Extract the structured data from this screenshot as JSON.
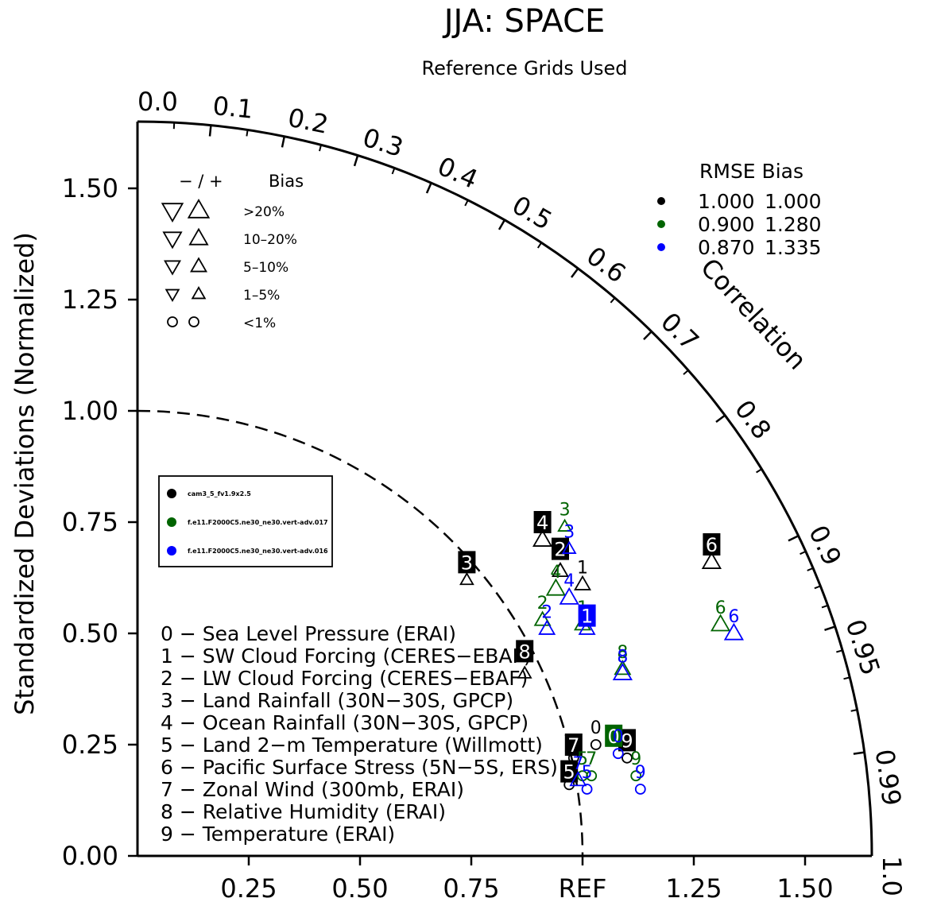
{
  "chart_data": {
    "type": "scatter",
    "subtype": "taylor-diagram",
    "title": "JJA: SPACE",
    "subtitle": "Reference Grids Used",
    "ylabel": "Standardized Deviations (Normalized)",
    "arc_label": "Correlation",
    "ref_label": "REF",
    "radius_max": 1.65,
    "x_ticks": [
      "0.25",
      "0.50",
      "0.75",
      "1.25",
      "1.50"
    ],
    "x_tick_values": [
      0.25,
      0.5,
      0.75,
      1.25,
      1.5
    ],
    "y_ticks": [
      "0.00",
      "0.25",
      "0.50",
      "0.75",
      "1.00",
      "1.25",
      "1.50"
    ],
    "y_tick_values": [
      0,
      0.25,
      0.5,
      0.75,
      1.0,
      1.25,
      1.5
    ],
    "corr_ticks": [
      "0.0",
      "0.1",
      "0.2",
      "0.3",
      "0.4",
      "0.5",
      "0.6",
      "0.7",
      "0.8",
      "0.9",
      "0.95",
      "0.99",
      "1.0"
    ],
    "corr_tick_values": [
      0,
      0.1,
      0.2,
      0.3,
      0.4,
      0.5,
      0.6,
      0.7,
      0.8,
      0.9,
      0.95,
      0.99,
      1.0
    ],
    "minor_corr_ticks": [
      0.05,
      0.15,
      0.25,
      0.35,
      0.45,
      0.55,
      0.65,
      0.75,
      0.85,
      0.91,
      0.92,
      0.93,
      0.94,
      0.96,
      0.97,
      0.98
    ],
    "ref_arc_radius": 1.0,
    "bias_legend": {
      "header_sign": "− / +",
      "header": "Bias",
      "rows": [
        {
          "label": ">20%",
          "size": 1.0
        },
        {
          "label": "10–20%",
          "size": 0.8
        },
        {
          "label": "5–10%",
          "size": 0.6
        },
        {
          "label": "1–5%",
          "size": 0.4
        },
        {
          "label": "<1%",
          "size": 0,
          "circle": true
        }
      ]
    },
    "stats_legend": {
      "header": "RMSE  Bias",
      "rows": [
        {
          "color": "#000000",
          "rmse": "1.000",
          "bias": "1.000"
        },
        {
          "color": "#006400",
          "rmse": "0.900",
          "bias": "1.280"
        },
        {
          "color": "#0000ff",
          "rmse": "0.870",
          "bias": "1.335"
        }
      ]
    },
    "cases": [
      {
        "name": "cam3_5_fv1.9x2.5",
        "color": "#000000"
      },
      {
        "name": "f.e11.F2000C5.ne30_ne30.vert-adv.017",
        "color": "#006400"
      },
      {
        "name": "f.e11.F2000C5.ne30_ne30.vert-adv.016",
        "color": "#0000ff"
      }
    ],
    "variables": [
      "0 − Sea Level Pressure (ERAI)",
      "1 − SW Cloud Forcing (CERES−EBAF)",
      "2 − LW Cloud Forcing (CERES−EBAF)",
      "3 − Land Rainfall (30N−30S, GPCP)",
      "4 − Ocean Rainfall (30N−30S, GPCP)",
      "5 − Land 2−m Temperature (Willmott)",
      "6 − Pacific Surface Stress (5N−5S, ERS)",
      "7 − Zonal Wind (300mb, ERAI)",
      "8 − Relative Humidity (ERAI)",
      "9 − Temperature (ERAI)"
    ],
    "series": [
      {
        "name": "cam3_5_fv1.9x2.5",
        "color": "#000000",
        "points": [
          {
            "id": "0",
            "x": 1.03,
            "y": 0.25,
            "marker": "circle",
            "size": 0,
            "label_style": "plain"
          },
          {
            "id": "1",
            "x": 1.0,
            "y": 0.61,
            "marker": "up",
            "size": 0.6,
            "label_style": "plain"
          },
          {
            "id": "2",
            "x": 0.95,
            "y": 0.64,
            "marker": "up",
            "size": 0.6,
            "label_style": "box",
            "lx": 0.95,
            "ly": 0.69
          },
          {
            "id": "3",
            "x": 0.74,
            "y": 0.62,
            "marker": "up",
            "size": 0.4,
            "label_style": "box",
            "lx": 0.74,
            "ly": 0.66
          },
          {
            "id": "4",
            "x": 0.91,
            "y": 0.71,
            "marker": "up",
            "size": 0.8,
            "label_style": "box",
            "lx": 0.91,
            "ly": 0.75
          },
          {
            "id": "5",
            "x": 0.97,
            "y": 0.16,
            "marker": "circle",
            "size": 0,
            "label_style": "box",
            "lx": 0.97,
            "ly": 0.19
          },
          {
            "id": "6",
            "x": 1.29,
            "y": 0.66,
            "marker": "up",
            "size": 0.8,
            "label_style": "box",
            "lx": 1.29,
            "ly": 0.7
          },
          {
            "id": "7",
            "x": 0.98,
            "y": 0.22,
            "marker": "circle",
            "size": 0,
            "label_style": "box",
            "lx": 0.98,
            "ly": 0.25
          },
          {
            "id": "8",
            "x": 0.87,
            "y": 0.41,
            "marker": "up",
            "size": 0.4,
            "label_style": "box",
            "lx": 0.87,
            "ly": 0.46
          },
          {
            "id": "9",
            "x": 1.1,
            "y": 0.22,
            "marker": "circle",
            "size": 0,
            "label_style": "box",
            "lx": 1.1,
            "ly": 0.26
          }
        ]
      },
      {
        "name": "f.e11.F2000C5.ne30_ne30.vert-adv.017",
        "color": "#006400",
        "points": [
          {
            "id": "0",
            "x": 1.07,
            "y": 0.26,
            "marker": "circle",
            "size": 0,
            "label_style": "box",
            "lx": 1.07,
            "ly": 0.27
          },
          {
            "id": "1",
            "x": 1.0,
            "y": 0.52,
            "marker": "up",
            "size": 0.6,
            "label_style": "plain"
          },
          {
            "id": "2",
            "x": 0.91,
            "y": 0.53,
            "marker": "up",
            "size": 0.6,
            "label_style": "plain"
          },
          {
            "id": "3",
            "x": 0.96,
            "y": 0.74,
            "marker": "up",
            "size": 0.4,
            "label_style": "plain"
          },
          {
            "id": "4",
            "x": 0.94,
            "y": 0.6,
            "marker": "up",
            "size": 0.8,
            "label_style": "plain"
          },
          {
            "id": "5",
            "x": 1.0,
            "y": 0.18,
            "marker": "circle",
            "size": 0,
            "label_style": "plain"
          },
          {
            "id": "6",
            "x": 1.31,
            "y": 0.52,
            "marker": "up",
            "size": 0.8,
            "label_style": "plain"
          },
          {
            "id": "7",
            "x": 1.02,
            "y": 0.18,
            "marker": "circle",
            "size": 0,
            "label_style": "plain"
          },
          {
            "id": "8",
            "x": 1.09,
            "y": 0.42,
            "marker": "up",
            "size": 0.6,
            "label_style": "plain"
          },
          {
            "id": "9",
            "x": 1.12,
            "y": 0.18,
            "marker": "circle",
            "size": 0,
            "label_style": "plain"
          }
        ]
      },
      {
        "name": "f.e11.F2000C5.ne30_ne30.vert-adv.016",
        "color": "#0000ff",
        "points": [
          {
            "id": "0",
            "x": 1.08,
            "y": 0.23,
            "marker": "circle",
            "size": 0,
            "label_style": "plain"
          },
          {
            "id": "1",
            "x": 1.01,
            "y": 0.51,
            "marker": "up",
            "size": 0.6,
            "label_style": "box",
            "lx": 1.01,
            "ly": 0.54
          },
          {
            "id": "2",
            "x": 0.92,
            "y": 0.51,
            "marker": "up",
            "size": 0.6,
            "label_style": "plain"
          },
          {
            "id": "3",
            "x": 0.97,
            "y": 0.69,
            "marker": "up",
            "size": 0.4,
            "label_style": "plain"
          },
          {
            "id": "4",
            "x": 0.97,
            "y": 0.58,
            "marker": "up",
            "size": 0.8,
            "label_style": "plain"
          },
          {
            "id": "5",
            "x": 1.01,
            "y": 0.15,
            "marker": "circle",
            "size": 0,
            "label_style": "plain"
          },
          {
            "id": "6",
            "x": 1.34,
            "y": 0.5,
            "marker": "up",
            "size": 0.8,
            "label_style": "plain"
          },
          {
            "id": "7",
            "x": 0.99,
            "y": 0.17,
            "marker": "up",
            "size": 0.6,
            "label_style": "plain"
          },
          {
            "id": "8",
            "x": 1.09,
            "y": 0.41,
            "marker": "up",
            "size": 0.8,
            "label_style": "plain"
          },
          {
            "id": "9",
            "x": 1.13,
            "y": 0.15,
            "marker": "circle",
            "size": 0,
            "label_style": "plain"
          }
        ]
      }
    ]
  }
}
